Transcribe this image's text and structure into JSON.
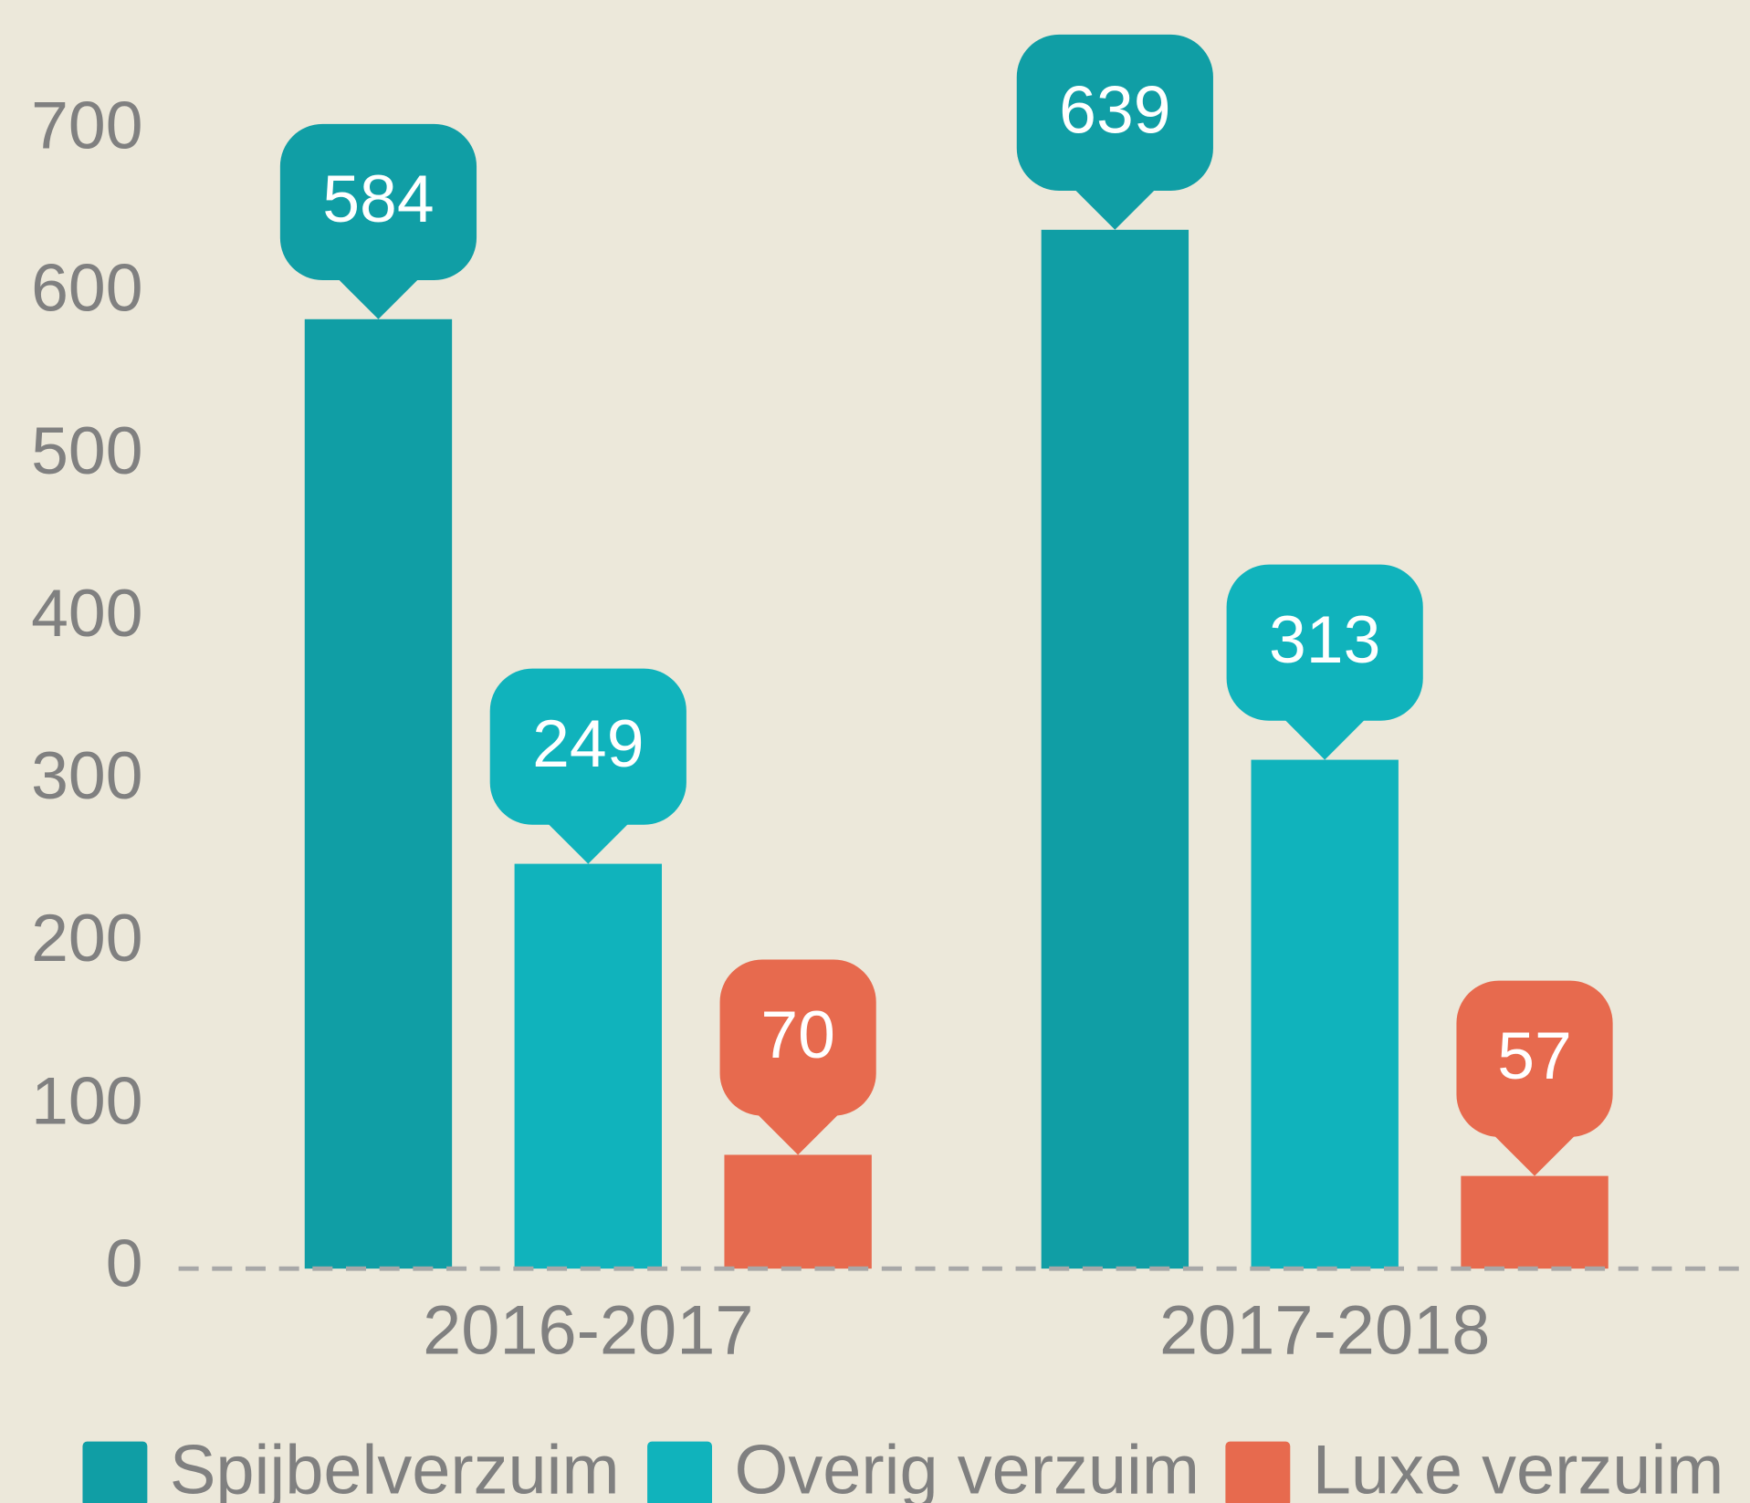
{
  "chart_data": {
    "type": "bar",
    "categories": [
      "2016-2017",
      "2017-2018"
    ],
    "series": [
      {
        "name": "Spijbelverzuim",
        "color": "#109ea5",
        "values": [
          584,
          639
        ]
      },
      {
        "name": "Overig verzuim",
        "color": "#10b3bc",
        "values": [
          249,
          313
        ]
      },
      {
        "name": "Luxe verzuim",
        "color": "#e76a4e",
        "values": [
          70,
          57
        ]
      }
    ],
    "ylim": [
      0,
      700
    ],
    "yticks": [
      0,
      100,
      200,
      300,
      400,
      500,
      600,
      700
    ],
    "legend": "bottom"
  }
}
